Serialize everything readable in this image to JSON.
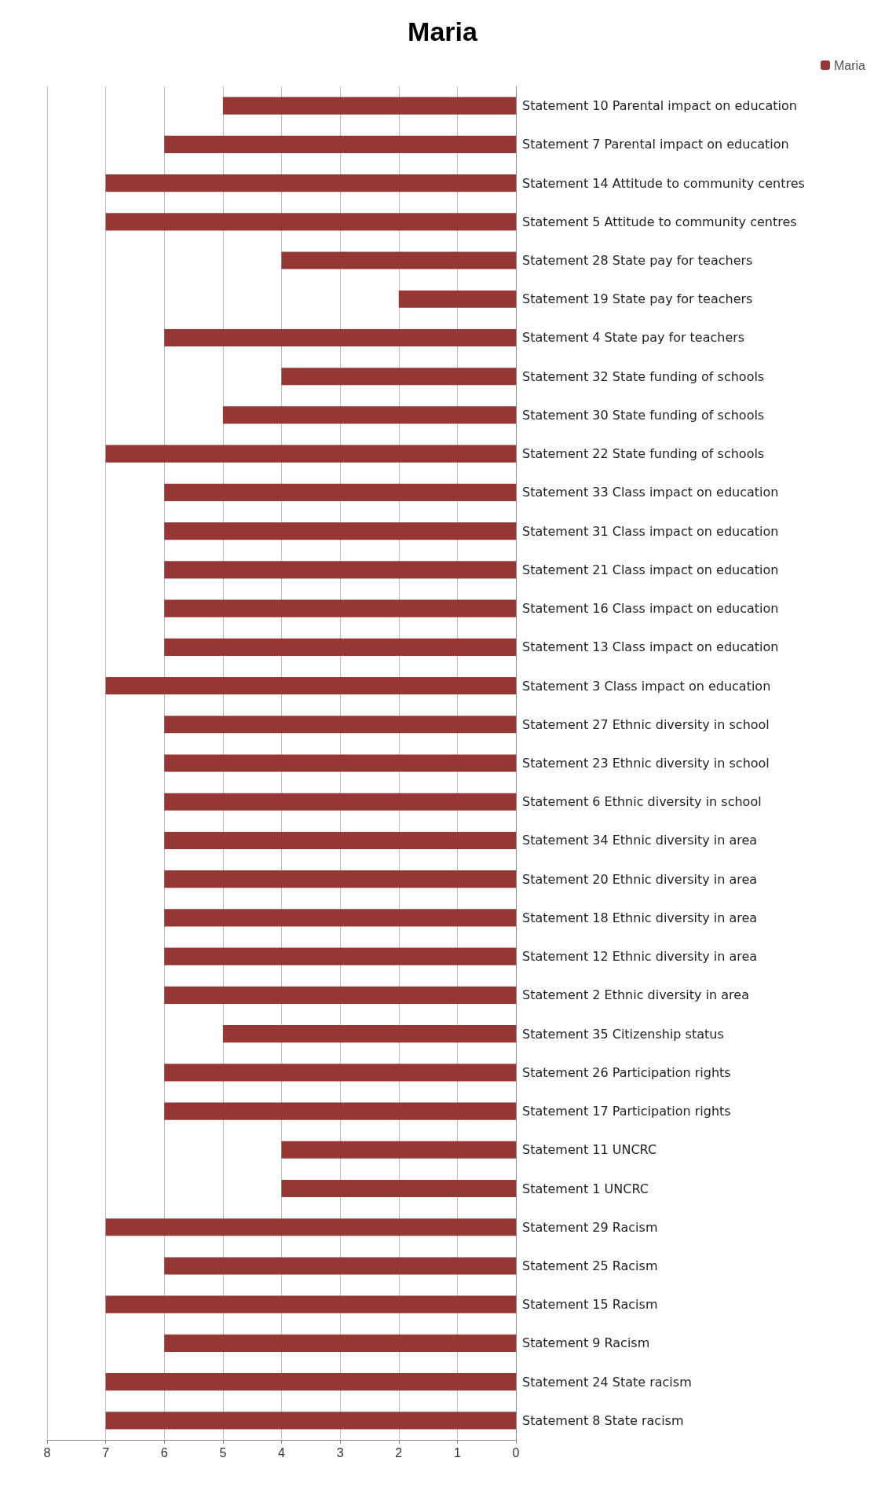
{
  "chart_data": {
    "type": "bar",
    "orientation": "horizontal",
    "title": "Maria",
    "categories": [
      "Statement 10 Parental impact on education",
      "Statement 7 Parental impact on education",
      "Statement 14 Attitude to community centres",
      "Statement 5 Attitude to community centres",
      "Statement 28 State pay for teachers",
      "Statement 19 State pay for teachers",
      "Statement 4 State pay for teachers",
      "Statement 32 State funding of schools",
      "Statement 30 State funding of schools",
      "Statement 22 State funding of schools",
      "Statement 33 Class impact on education",
      "Statement 31 Class impact on education",
      "Statement 21 Class impact on education",
      "Statement 16 Class impact on education",
      "Statement 13 Class impact on education",
      "Statement 3 Class impact on education",
      "Statement 27 Ethnic diversity in school",
      "Statement 23 Ethnic diversity in school",
      "Statement 6 Ethnic diversity in school",
      "Statement 34 Ethnic diversity in area",
      "Statement 20 Ethnic diversity in area",
      "Statement 18 Ethnic diversity in area",
      "Statement 12 Ethnic diversity in area",
      "Statement 2 Ethnic diversity in area",
      "Statement 35 Citizenship status",
      "Statement 26 Participation rights",
      "Statement 17 Participation rights",
      "Statement 11 UNCRC",
      "Statement 1 UNCRC",
      "Statement 29 Racism",
      "Statement 25 Racism",
      "Statement 15 Racism",
      "Statement 9 Racism",
      "Statement 24 State racism",
      "Statement 8 State racism"
    ],
    "series": [
      {
        "name": "Maria",
        "color": "#953735",
        "values": [
          5,
          6,
          7,
          7,
          4,
          2,
          6,
          4,
          5,
          7,
          6,
          6,
          6,
          6,
          6,
          7,
          6,
          6,
          6,
          6,
          6,
          6,
          6,
          6,
          5,
          6,
          6,
          4,
          4,
          7,
          6,
          7,
          6,
          7,
          7
        ]
      }
    ],
    "xlim": [
      8,
      0
    ],
    "xticks": [
      8,
      7,
      6,
      5,
      4,
      3,
      2,
      1,
      0
    ],
    "grid": "x",
    "legend": "top right"
  }
}
